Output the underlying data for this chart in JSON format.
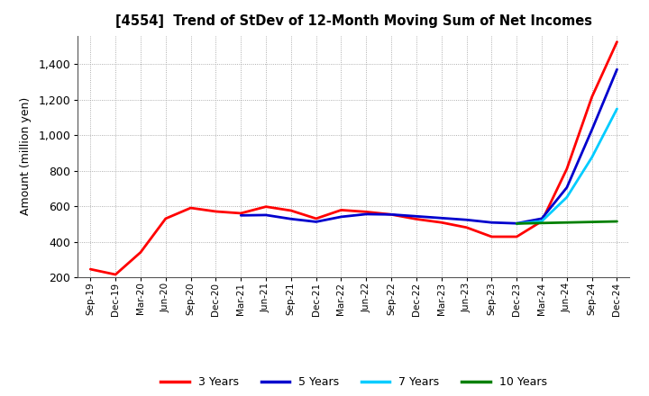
{
  "title": "[4554]  Trend of StDev of 12-Month Moving Sum of Net Incomes",
  "ylabel": "Amount (million yen)",
  "ylim": [
    200,
    1560
  ],
  "yticks": [
    200,
    400,
    600,
    800,
    1000,
    1200,
    1400
  ],
  "background_color": "#ffffff",
  "grid_color": "#aaaaaa",
  "legend_labels": [
    "3 Years",
    "5 Years",
    "7 Years",
    "10 Years"
  ],
  "legend_colors": [
    "#ff0000",
    "#0000cd",
    "#00ccff",
    "#008000"
  ],
  "x_labels": [
    "Sep-19",
    "Dec-19",
    "Mar-20",
    "Jun-20",
    "Sep-20",
    "Dec-20",
    "Mar-21",
    "Jun-21",
    "Sep-21",
    "Dec-21",
    "Mar-22",
    "Jun-22",
    "Sep-22",
    "Dec-22",
    "Mar-23",
    "Jun-23",
    "Sep-23",
    "Dec-23",
    "Mar-24",
    "Jun-24",
    "Sep-24",
    "Dec-24"
  ],
  "series_3yr": [
    245,
    215,
    340,
    530,
    590,
    570,
    560,
    597,
    575,
    530,
    578,
    568,
    553,
    527,
    508,
    480,
    428,
    428,
    515,
    810,
    1215,
    1525
  ],
  "series_5yr": [
    null,
    null,
    null,
    null,
    null,
    null,
    548,
    550,
    528,
    512,
    540,
    555,
    553,
    543,
    533,
    523,
    508,
    503,
    530,
    705,
    1030,
    1370
  ],
  "series_7yr": [
    null,
    null,
    null,
    null,
    null,
    null,
    null,
    null,
    null,
    null,
    null,
    null,
    null,
    null,
    null,
    null,
    null,
    502,
    515,
    650,
    875,
    1148
  ],
  "series_10yr": [
    null,
    null,
    null,
    null,
    null,
    null,
    null,
    null,
    null,
    null,
    null,
    null,
    null,
    null,
    null,
    null,
    null,
    502,
    505,
    508,
    511,
    514
  ]
}
